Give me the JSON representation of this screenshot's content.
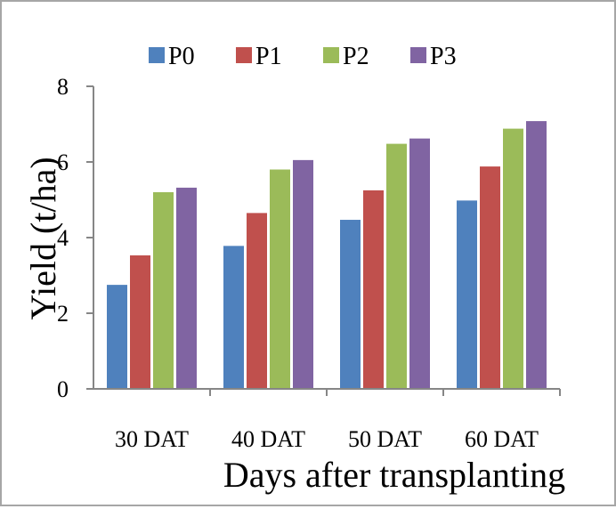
{
  "chart_data": {
    "type": "bar",
    "title": "",
    "xlabel": "Days after transplanting",
    "ylabel": "Yield (t/ha)",
    "categories": [
      "30 DAT",
      "40 DAT",
      "50 DAT",
      "60 DAT"
    ],
    "ylim": [
      0,
      8
    ],
    "yticks": [
      "0",
      "2",
      "4",
      "6",
      "8"
    ],
    "grid": false,
    "legend_position": "top",
    "series": [
      {
        "name": "P0",
        "color": "#4f81bd",
        "values": [
          2.75,
          3.78,
          4.47,
          4.98
        ]
      },
      {
        "name": "P1",
        "color": "#c0504d",
        "values": [
          3.53,
          4.65,
          5.25,
          5.88
        ]
      },
      {
        "name": "P2",
        "color": "#9bbb59",
        "values": [
          5.2,
          5.8,
          6.48,
          6.88
        ]
      },
      {
        "name": "P3",
        "color": "#8064a2",
        "values": [
          5.32,
          6.05,
          6.62,
          7.08
        ]
      }
    ]
  }
}
